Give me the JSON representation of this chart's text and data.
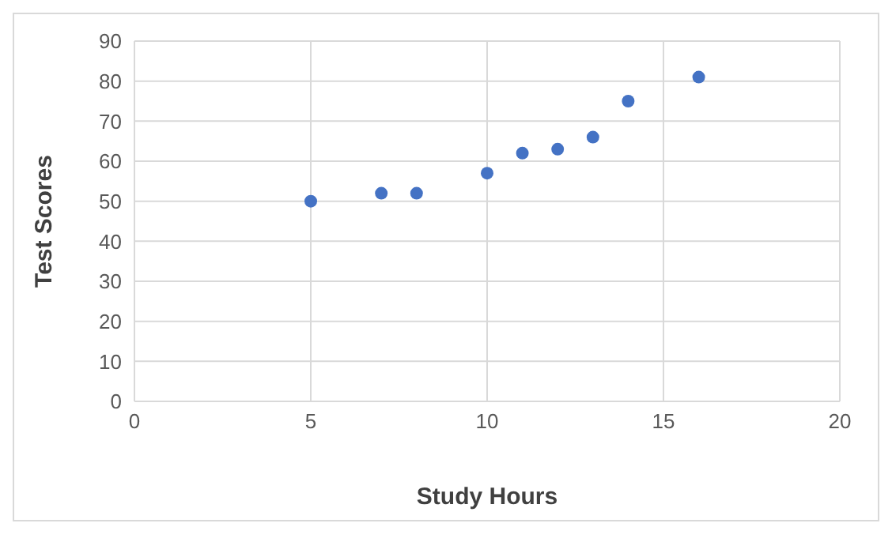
{
  "chart_data": {
    "type": "scatter",
    "xlabel": "Study Hours",
    "ylabel": "Test Scores",
    "x": [
      5,
      7,
      8,
      10,
      11,
      12,
      13,
      14,
      16
    ],
    "series": [
      {
        "color": "#4472c4",
        "values": [
          50,
          52,
          52,
          57,
          62,
          63,
          66,
          75,
          81
        ]
      }
    ],
    "xlim": [
      0,
      20
    ],
    "xticks": [
      0,
      5,
      10,
      15,
      20
    ],
    "ylim": [
      0,
      90
    ],
    "yticks": [
      0,
      10,
      20,
      30,
      40,
      50,
      60,
      70,
      80,
      90
    ],
    "grid": true,
    "marker": "circle"
  }
}
